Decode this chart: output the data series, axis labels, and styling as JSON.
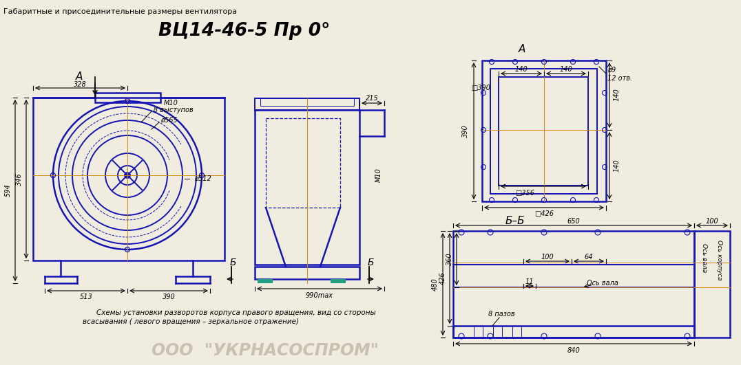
{
  "title": "ВЦ14-46-5 Пр 0°",
  "header": "Габаритные и присоединительные размеры вентилятора",
  "footer_line1": "Схемы установки разворотов корпуса правого вращения, вид со стороны",
  "footer_line2": "всасывания ( левого вращения – зеркальное отражение)",
  "watermark": "ООО  \"УКРНАСОСПРОМ\"",
  "bg_color": "#f0ece0",
  "line_color": "#1414b4",
  "dim_color": "#000000",
  "orange_line": "#d4880a"
}
